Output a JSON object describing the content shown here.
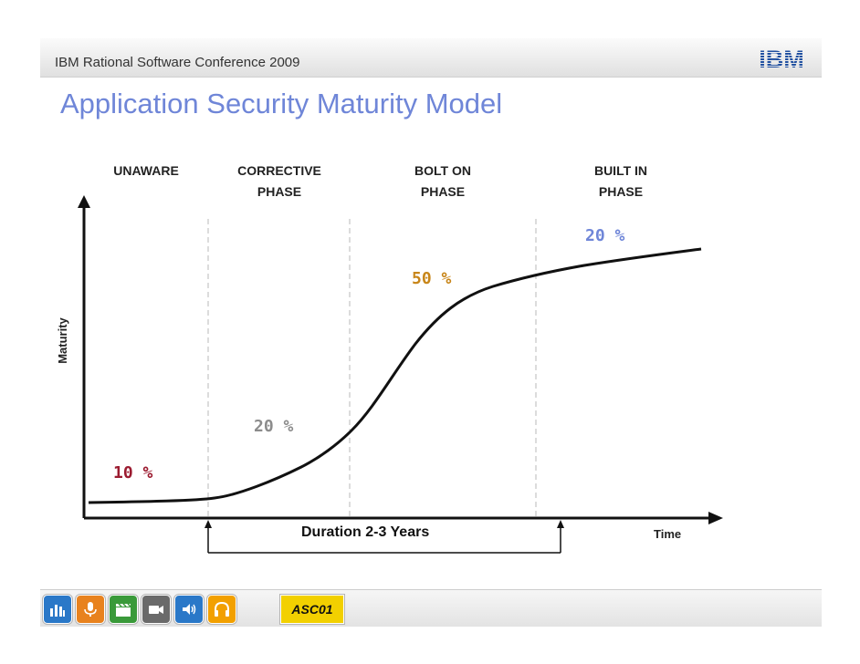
{
  "header": {
    "conference": "IBM Rational Software Conference 2009",
    "logo_text": "IBM"
  },
  "title": "Application Security Maturity Model",
  "phases": [
    {
      "label": "UNAWARE",
      "percent": "10 %",
      "color": "#9b1b30"
    },
    {
      "label": "CORRECTIVE\nPHASE",
      "percent": "20 %",
      "color": "#8c8c8c"
    },
    {
      "label": "BOLT ON\nPHASE",
      "percent": "50 %",
      "color": "#c8861a"
    },
    {
      "label": "BUILT IN\nPHASE",
      "percent": "20 %",
      "color": "#6f86d8"
    }
  ],
  "axes": {
    "y_label": "Maturity",
    "x_label": "Time"
  },
  "duration_label": "Duration 2-3 Years",
  "footer": {
    "icons": [
      "equalizer-icon",
      "microphone-icon",
      "clapperboard-icon",
      "video-camera-icon",
      "speaker-icon",
      "headphones-icon"
    ],
    "session_code": "ASC01"
  },
  "colors": {
    "title": "#6f86d8",
    "ibm_blue": "#1f4fa0"
  }
}
